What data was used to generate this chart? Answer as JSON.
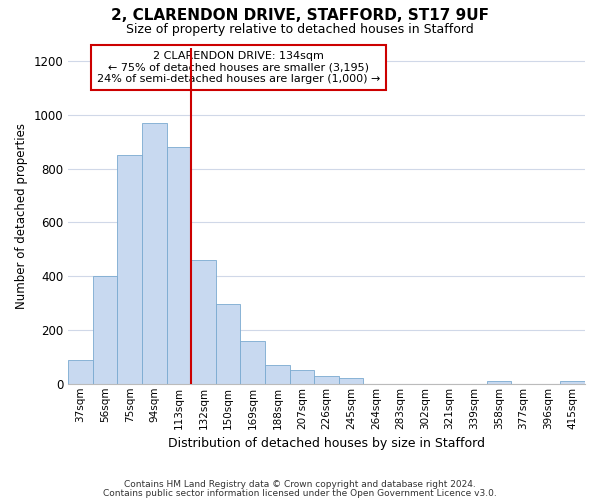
{
  "title1": "2, CLARENDON DRIVE, STAFFORD, ST17 9UF",
  "title2": "Size of property relative to detached houses in Stafford",
  "xlabel": "Distribution of detached houses by size in Stafford",
  "ylabel": "Number of detached properties",
  "categories": [
    "37sqm",
    "56sqm",
    "75sqm",
    "94sqm",
    "113sqm",
    "132sqm",
    "150sqm",
    "169sqm",
    "188sqm",
    "207sqm",
    "226sqm",
    "245sqm",
    "264sqm",
    "283sqm",
    "302sqm",
    "321sqm",
    "339sqm",
    "358sqm",
    "377sqm",
    "396sqm",
    "415sqm"
  ],
  "values": [
    90,
    400,
    850,
    970,
    880,
    460,
    295,
    160,
    70,
    50,
    30,
    20,
    0,
    0,
    0,
    0,
    0,
    10,
    0,
    0,
    10
  ],
  "bar_color": "#c8d9f0",
  "bar_edge_color": "#7aaad0",
  "vline_x_index": 5,
  "vline_color": "#cc0000",
  "annotation_line1": "2 CLARENDON DRIVE: 134sqm",
  "annotation_line2": "← 75% of detached houses are smaller (3,195)",
  "annotation_line3": "24% of semi-detached houses are larger (1,000) →",
  "annotation_box_color": "#ffffff",
  "annotation_box_edge": "#cc0000",
  "ylim": [
    0,
    1250
  ],
  "yticks": [
    0,
    200,
    400,
    600,
    800,
    1000,
    1200
  ],
  "footer1": "Contains HM Land Registry data © Crown copyright and database right 2024.",
  "footer2": "Contains public sector information licensed under the Open Government Licence v3.0.",
  "bg_color": "#ffffff",
  "plot_bg_color": "#ffffff",
  "grid_color": "#d0d8e8"
}
